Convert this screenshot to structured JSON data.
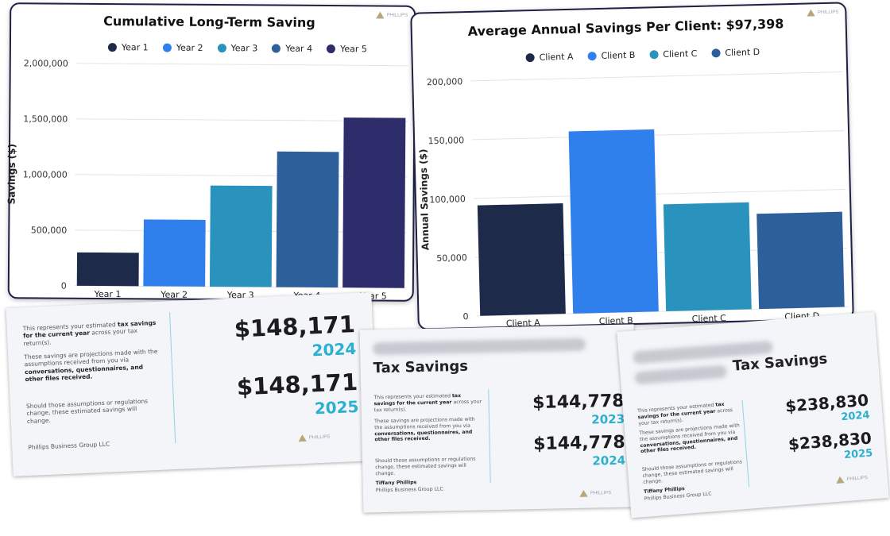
{
  "colors": {
    "year1": "#1e2a4a",
    "year2": "#2f80ed",
    "year3": "#2a93bd",
    "year4": "#2d5f9a",
    "year5": "#2e2d6b",
    "accent": "#2bb0cf"
  },
  "chart_data": [
    {
      "type": "bar",
      "title": "Cumulative Long-Term Saving",
      "ylabel": "Savings ($)",
      "categories": [
        "Year 1",
        "Year 2",
        "Year 3",
        "Year 4",
        "Year 5"
      ],
      "values": [
        300000,
        600000,
        910000,
        1220000,
        1530000
      ],
      "ylim": [
        0,
        2000000
      ],
      "yticks": [
        "0",
        "500,000",
        "1,000,000",
        "1,500,000",
        "2,000,000"
      ],
      "legend": [
        "Year 1",
        "Year 2",
        "Year 3",
        "Year 4",
        "Year 5"
      ],
      "legend_position": "top",
      "grid": true
    },
    {
      "type": "bar",
      "title": "Average Annual Savings Per Client: $97,398",
      "ylabel": "Annual Savings ($)",
      "categories": [
        "Client A",
        "Client B",
        "Client C",
        "Client D"
      ],
      "values": [
        94000,
        155000,
        91000,
        81000
      ],
      "ylim": [
        0,
        200000
      ],
      "yticks": [
        "0",
        "50,000",
        "100,000",
        "150,000",
        "200,000"
      ],
      "legend": [
        "Client A",
        "Client B",
        "Client C",
        "Client D"
      ],
      "legend_position": "top",
      "grid": true
    }
  ],
  "reports": [
    {
      "heading": "",
      "p1_pre": "This represents your estimated ",
      "p1_bold": "tax savings for the current year",
      "p1_post": " across your tax return(s).",
      "p2_pre": "These savings are projections made with the assumptions received from you via ",
      "p2_bold": "conversations, questionnaires, and other files received.",
      "p3": "Should those assumptions or regulations change, these estimated savings will change.",
      "signer": "",
      "company": "Phillips Business Group LLC",
      "amount1": "$148,171",
      "year1": "2024",
      "amount2": "$148,171",
      "year2": "2025"
    },
    {
      "heading": "Tax Savings",
      "p1_pre": "This represents your estimated ",
      "p1_bold": "tax savings for the current year",
      "p1_post": " across your tax return(s).",
      "p2_pre": "These savings are projections made with the assumptions received from you via ",
      "p2_bold": "conversations, questionnaires, and other files received.",
      "p3": "Should those assumptions or regulations change, these estimated savings will change.",
      "signer": "Tiffany Phillips",
      "company": "Phillips Business Group LLC",
      "amount1": "$144,778",
      "year1": "2023",
      "amount2": "$144,778",
      "year2": "2024"
    },
    {
      "heading": "Tax Savings",
      "p1_pre": "This represents your estimated ",
      "p1_bold": "tax savings for the current year",
      "p1_post": " across your tax return(s).",
      "p2_pre": "These savings are projections made with the assumptions received from you via ",
      "p2_bold": "conversations, questionnaires, and other files received.",
      "p3": "Should those assumptions or regulations change, these estimated savings will change.",
      "signer": "Tiffany Phillips",
      "company": "Phillips Business Group LLC",
      "amount1": "$238,830",
      "year1": "2024",
      "amount2": "$238,830",
      "year2": "2025"
    }
  ],
  "logo": {
    "icon": "phillips-logo-icon",
    "text": "PHILLIPS"
  }
}
